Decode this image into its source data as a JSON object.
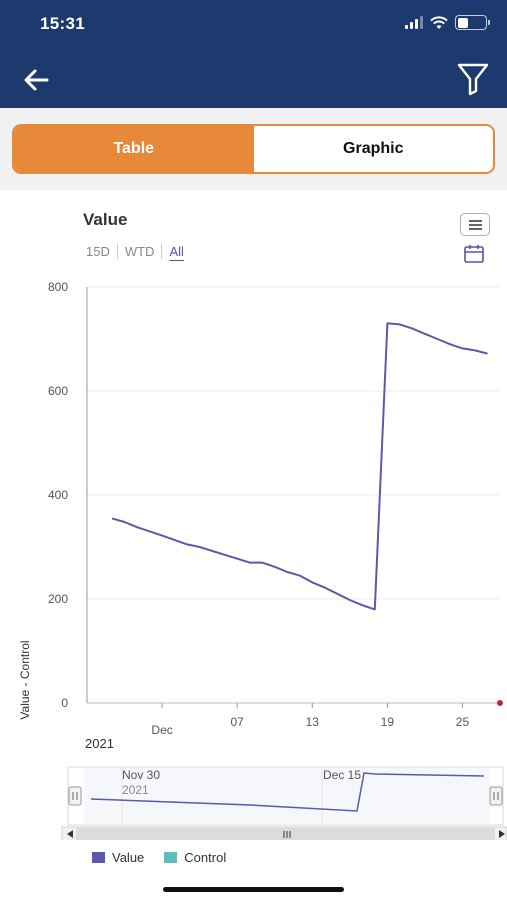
{
  "status_bar": {
    "time": "15:31"
  },
  "header": {
    "back_icon": "arrow-left-icon",
    "filter_icon": "funnel-icon"
  },
  "tabs": [
    {
      "label": "Table",
      "active": true
    },
    {
      "label": "Graphic",
      "active": false
    }
  ],
  "chart_header": {
    "title": "Value",
    "ranges": [
      {
        "label": "15D",
        "active": false
      },
      {
        "label": "WTD",
        "active": false
      },
      {
        "label": "All",
        "active": true
      }
    ],
    "menu_icon": "hamburger-menu-icon",
    "calendar_icon": "calendar-icon"
  },
  "chart_data": {
    "type": "line",
    "ylabel": "Value - Control",
    "ylim": [
      0,
      800
    ],
    "yticks": [
      0,
      200,
      400,
      600,
      800
    ],
    "xticks": [
      "Dec",
      "07",
      "13",
      "19",
      "25"
    ],
    "x_sublabel": "2021",
    "grid": true,
    "legend_position": "bottom",
    "series": [
      {
        "name": "Value",
        "color": "#5c5aa8",
        "x": [
          "2021-11-27",
          "2021-11-28",
          "2021-11-29",
          "2021-12-01",
          "2021-12-03",
          "2021-12-04",
          "2021-12-06",
          "2021-12-08",
          "2021-12-09",
          "2021-12-10",
          "2021-12-11",
          "2021-12-12",
          "2021-12-13",
          "2021-12-14",
          "2021-12-15",
          "2021-12-16",
          "2021-12-17",
          "2021-12-18",
          "2021-12-19",
          "2021-12-20",
          "2021-12-21",
          "2021-12-22",
          "2021-12-23",
          "2021-12-24",
          "2021-12-25",
          "2021-12-26",
          "2021-12-27"
        ],
        "values": [
          355,
          348,
          338,
          322,
          305,
          300,
          285,
          270,
          270,
          262,
          252,
          245,
          232,
          222,
          210,
          198,
          188,
          180,
          730,
          728,
          720,
          710,
          700,
          690,
          682,
          678,
          672
        ]
      },
      {
        "name": "Control",
        "color": "#5bbfbf",
        "values": []
      }
    ]
  },
  "navigator": {
    "labels": [
      "Nov 30",
      "2021",
      "Dec 15"
    ]
  },
  "legend": [
    {
      "label": "Value",
      "color": "#5c5aa8"
    },
    {
      "label": "Control",
      "color": "#5bbfbf"
    }
  ]
}
